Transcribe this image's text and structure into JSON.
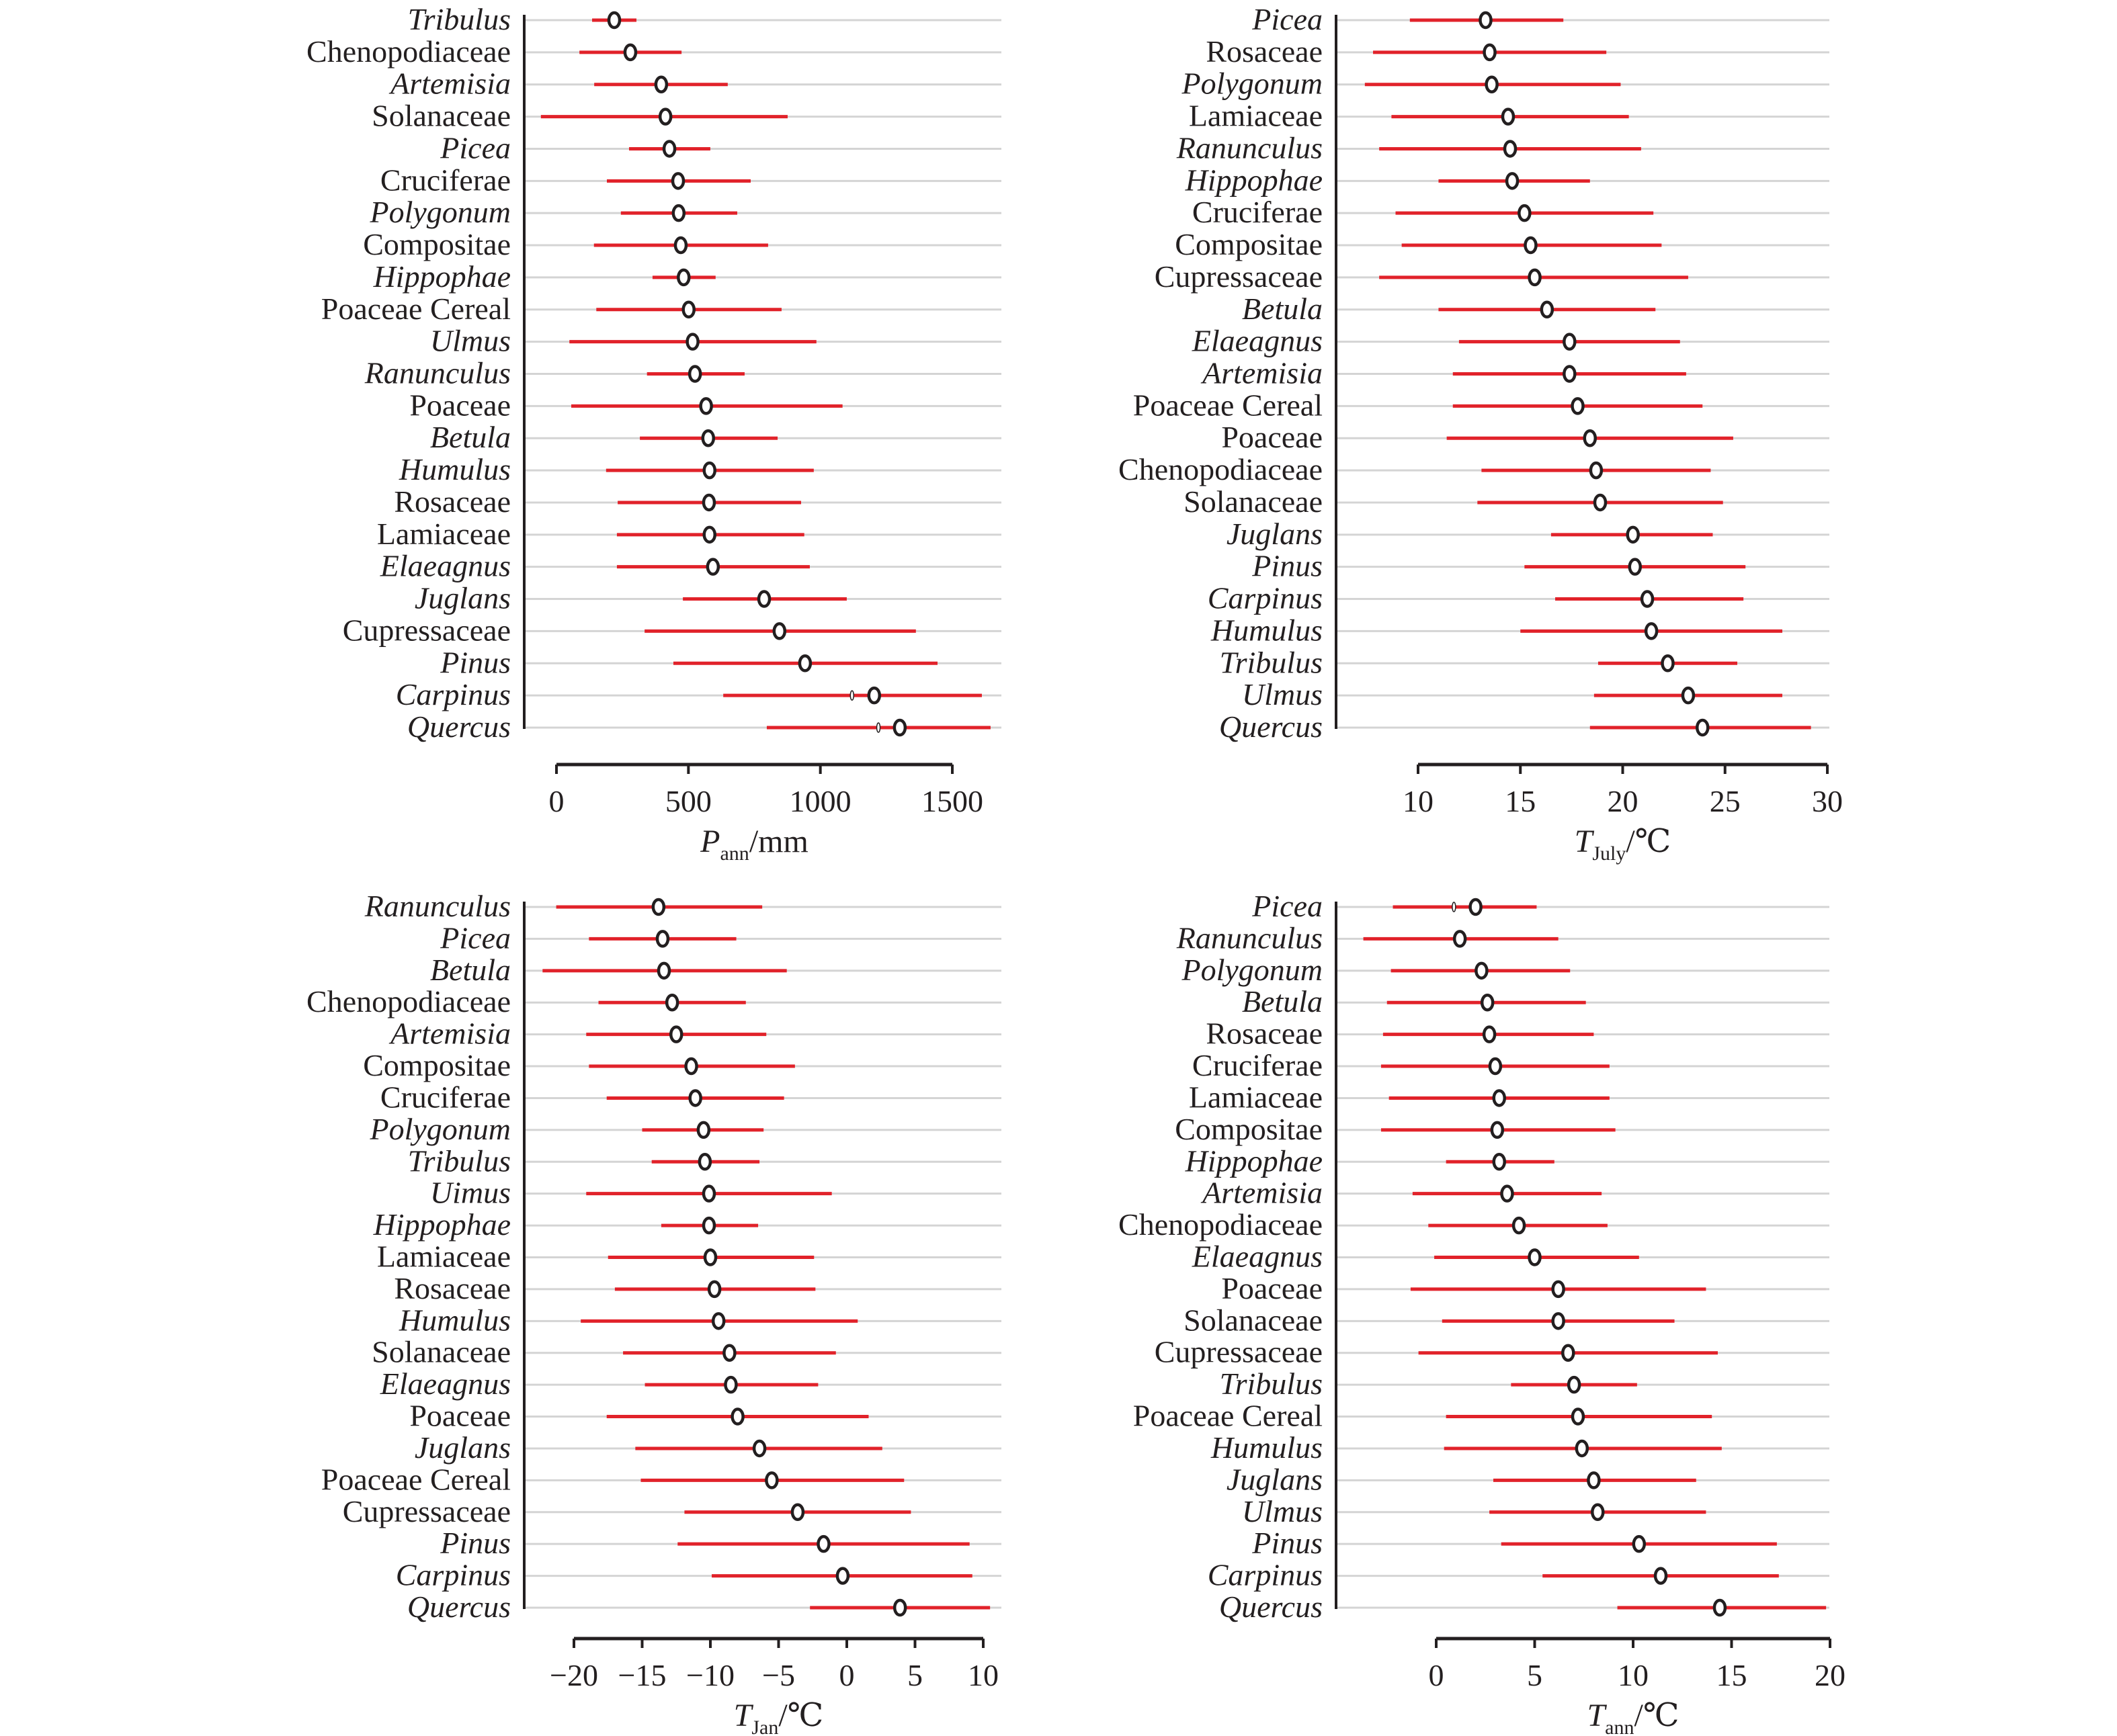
{
  "chart_data": [
    {
      "type": "scatter",
      "subtype": "range-plot",
      "title": "",
      "xlabel_main": "P",
      "xlabel_sub": "ann",
      "xlabel_unit": "/mm",
      "xlim": [
        -60,
        1660
      ],
      "xticks": [
        0,
        500,
        1000,
        1500
      ],
      "xtick_labels": [
        "0",
        "500",
        "1000",
        "1500"
      ],
      "grid": true,
      "series": [
        {
          "taxon": "Tribulus",
          "italic": true,
          "min": 135,
          "mean": 219,
          "max": 303
        },
        {
          "taxon": "Chenopodiaceae",
          "italic": false,
          "min": 87,
          "mean": 280,
          "max": 474
        },
        {
          "taxon": "Artemisia",
          "italic": true,
          "min": 143,
          "mean": 397,
          "max": 649
        },
        {
          "taxon": "Solanaceae",
          "italic": false,
          "min": -59,
          "mean": 413,
          "max": 876
        },
        {
          "taxon": "Picea",
          "italic": true,
          "min": 275,
          "mean": 428,
          "max": 583
        },
        {
          "taxon": "Cruciferae",
          "italic": false,
          "min": 191,
          "mean": 461,
          "max": 736
        },
        {
          "taxon": "Polygonum",
          "italic": true,
          "min": 244,
          "mean": 463,
          "max": 685
        },
        {
          "taxon": "Compositae",
          "italic": false,
          "min": 142,
          "mean": 471,
          "max": 802
        },
        {
          "taxon": "Hippophae",
          "italic": true,
          "min": 364,
          "mean": 482,
          "max": 603
        },
        {
          "taxon": "Poaceae Cereal",
          "italic": false,
          "min": 151,
          "mean": 501,
          "max": 853
        },
        {
          "taxon": "Ulmus",
          "italic": true,
          "min": 49,
          "mean": 516,
          "max": 985
        },
        {
          "taxon": "Ranunculus",
          "italic": true,
          "min": 343,
          "mean": 525,
          "max": 713
        },
        {
          "taxon": "Poaceae",
          "italic": false,
          "min": 56,
          "mean": 567,
          "max": 1084
        },
        {
          "taxon": "Betula",
          "italic": true,
          "min": 316,
          "mean": 575,
          "max": 838
        },
        {
          "taxon": "Humulus",
          "italic": true,
          "min": 188,
          "mean": 580,
          "max": 975
        },
        {
          "taxon": "Rosaceae",
          "italic": false,
          "min": 232,
          "mean": 578,
          "max": 927
        },
        {
          "taxon": "Lamiaceae",
          "italic": false,
          "min": 229,
          "mean": 580,
          "max": 939
        },
        {
          "taxon": "Elaeagnus",
          "italic": true,
          "min": 229,
          "mean": 593,
          "max": 960
        },
        {
          "taxon": "Juglans",
          "italic": true,
          "min": 479,
          "mean": 787,
          "max": 1100
        },
        {
          "taxon": "Cupressaceae",
          "italic": false,
          "min": 334,
          "mean": 845,
          "max": 1362
        },
        {
          "taxon": "Pinus",
          "italic": true,
          "min": 443,
          "mean": 942,
          "max": 1444
        },
        {
          "taxon": "Carpinus",
          "italic": true,
          "min": 632,
          "mean": 1204,
          "max": 1612,
          "alt": 1120
        },
        {
          "taxon": "Quercus",
          "italic": true,
          "min": 797,
          "mean": 1301,
          "max": 1645,
          "alt": 1220
        }
      ]
    },
    {
      "type": "scatter",
      "subtype": "range-plot",
      "title": "",
      "xlabel_main": "T",
      "xlabel_sub": "July",
      "xlabel_unit": "/℃",
      "xlim": [
        6.5,
        30
      ],
      "xticks": [
        10,
        15,
        20,
        25,
        30
      ],
      "xtick_labels": [
        "10",
        "15",
        "20",
        "25",
        "30"
      ],
      "grid": true,
      "series": [
        {
          "taxon": "Picea",
          "italic": true,
          "min": 9.6,
          "mean": 13.3,
          "max": 17.1
        },
        {
          "taxon": "Rosaceae",
          "italic": false,
          "min": 7.8,
          "mean": 13.5,
          "max": 19.2
        },
        {
          "taxon": "Polygonum",
          "italic": true,
          "min": 7.4,
          "mean": 13.6,
          "max": 19.9
        },
        {
          "taxon": "Lamiaceae",
          "italic": false,
          "min": 8.7,
          "mean": 14.4,
          "max": 20.3
        },
        {
          "taxon": "Ranunculus",
          "italic": true,
          "min": 8.1,
          "mean": 14.5,
          "max": 20.9
        },
        {
          "taxon": "Hippophae",
          "italic": true,
          "min": 11.0,
          "mean": 14.6,
          "max": 18.4
        },
        {
          "taxon": "Cruciferae",
          "italic": false,
          "min": 8.9,
          "mean": 15.2,
          "max": 21.5
        },
        {
          "taxon": "Compositae",
          "italic": false,
          "min": 9.2,
          "mean": 15.5,
          "max": 21.9
        },
        {
          "taxon": "Cupressaceae",
          "italic": false,
          "min": 8.1,
          "mean": 15.7,
          "max": 23.2
        },
        {
          "taxon": "Betula",
          "italic": true,
          "min": 11.0,
          "mean": 16.3,
          "max": 21.6
        },
        {
          "taxon": "Elaeagnus",
          "italic": true,
          "min": 12.0,
          "mean": 17.4,
          "max": 22.8
        },
        {
          "taxon": "Artemisia",
          "italic": true,
          "min": 11.7,
          "mean": 17.4,
          "max": 23.1
        },
        {
          "taxon": "Poaceae Cereal",
          "italic": false,
          "min": 11.7,
          "mean": 17.8,
          "max": 23.9
        },
        {
          "taxon": "Poaceae",
          "italic": false,
          "min": 11.4,
          "mean": 18.4,
          "max": 25.4
        },
        {
          "taxon": "Chenopodiaceae",
          "italic": false,
          "min": 13.1,
          "mean": 18.7,
          "max": 24.3
        },
        {
          "taxon": "Solanaceae",
          "italic": false,
          "min": 12.9,
          "mean": 18.9,
          "max": 24.9
        },
        {
          "taxon": "Juglans",
          "italic": true,
          "min": 16.5,
          "mean": 20.5,
          "max": 24.4
        },
        {
          "taxon": "Pinus",
          "italic": true,
          "min": 15.2,
          "mean": 20.6,
          "max": 26.0
        },
        {
          "taxon": "Carpinus",
          "italic": true,
          "min": 16.7,
          "mean": 21.2,
          "max": 25.9
        },
        {
          "taxon": "Humulus",
          "italic": true,
          "min": 15.0,
          "mean": 21.4,
          "max": 27.8
        },
        {
          "taxon": "Tribulus",
          "italic": true,
          "min": 18.8,
          "mean": 22.2,
          "max": 25.6
        },
        {
          "taxon": "Ulmus",
          "italic": true,
          "min": 18.6,
          "mean": 23.2,
          "max": 27.8
        },
        {
          "taxon": "Quercus",
          "italic": true,
          "min": 18.4,
          "mean": 23.9,
          "max": 29.2
        }
      ]
    },
    {
      "type": "scatter",
      "subtype": "range-plot",
      "title": "",
      "xlabel_main": "T",
      "xlabel_sub": "Jan",
      "xlabel_unit": "/℃",
      "xlim": [
        -23.5,
        10.9
      ],
      "xticks": [
        -20,
        -15,
        -10,
        -5,
        0,
        5,
        10
      ],
      "xtick_labels": [
        "−20",
        "−15",
        "−10",
        "−5",
        "0",
        "5",
        "10"
      ],
      "grid": true,
      "series": [
        {
          "taxon": "Ranunculus",
          "italic": true,
          "min": -21.3,
          "mean": -13.8,
          "max": -6.2
        },
        {
          "taxon": "Picea",
          "italic": true,
          "min": -18.9,
          "mean": -13.5,
          "max": -8.1
        },
        {
          "taxon": "Betula",
          "italic": true,
          "min": -22.3,
          "mean": -13.4,
          "max": -4.4
        },
        {
          "taxon": "Chenopodiaceae",
          "italic": false,
          "min": -18.2,
          "mean": -12.8,
          "max": -7.4
        },
        {
          "taxon": "Artemisia",
          "italic": true,
          "min": -19.1,
          "mean": -12.5,
          "max": -5.9
        },
        {
          "taxon": "Compositae",
          "italic": false,
          "min": -18.9,
          "mean": -11.4,
          "max": -3.8
        },
        {
          "taxon": "Cruciferae",
          "italic": false,
          "min": -17.6,
          "mean": -11.1,
          "max": -4.6
        },
        {
          "taxon": "Polygonum",
          "italic": true,
          "min": -15.0,
          "mean": -10.5,
          "max": -6.1
        },
        {
          "taxon": "Tribulus",
          "italic": true,
          "min": -14.3,
          "mean": -10.4,
          "max": -6.4
        },
        {
          "taxon": "Uimus",
          "italic": true,
          "min": -19.1,
          "mean": -10.1,
          "max": -1.1
        },
        {
          "taxon": "Hippophae",
          "italic": true,
          "min": -13.6,
          "mean": -10.1,
          "max": -6.5
        },
        {
          "taxon": "Lamiaceae",
          "italic": false,
          "min": -17.5,
          "mean": -10.0,
          "max": -2.4
        },
        {
          "taxon": "Rosaceae",
          "italic": false,
          "min": -17.0,
          "mean": -9.7,
          "max": -2.3
        },
        {
          "taxon": "Humulus",
          "italic": true,
          "min": -19.5,
          "mean": -9.4,
          "max": 0.8
        },
        {
          "taxon": "Solanaceae",
          "italic": false,
          "min": -16.4,
          "mean": -8.6,
          "max": -0.8
        },
        {
          "taxon": "Elaeagnus",
          "italic": true,
          "min": -14.8,
          "mean": -8.5,
          "max": -2.1
        },
        {
          "taxon": "Poaceae",
          "italic": false,
          "min": -17.6,
          "mean": -8.0,
          "max": 1.6
        },
        {
          "taxon": "Juglans",
          "italic": true,
          "min": -15.5,
          "mean": -6.4,
          "max": 2.6
        },
        {
          "taxon": "Poaceae Cereal",
          "italic": false,
          "min": -15.1,
          "mean": -5.5,
          "max": 4.2
        },
        {
          "taxon": "Cupressaceae",
          "italic": false,
          "min": -11.9,
          "mean": -3.6,
          "max": 4.7
        },
        {
          "taxon": "Pinus",
          "italic": true,
          "min": -12.4,
          "mean": -1.7,
          "max": 9.0
        },
        {
          "taxon": "Carpinus",
          "italic": true,
          "min": -9.9,
          "mean": -0.3,
          "max": 9.2
        },
        {
          "taxon": "Quercus",
          "italic": true,
          "min": -2.7,
          "mean": 3.9,
          "max": 10.5
        }
      ]
    },
    {
      "type": "scatter",
      "subtype": "range-plot",
      "title": "",
      "xlabel_main": "T",
      "xlabel_sub": "ann",
      "xlabel_unit": "/℃",
      "xlim": [
        -4.6,
        20.8
      ],
      "xticks": [
        0,
        5,
        10,
        15,
        20
      ],
      "xtick_labels": [
        "0",
        "5",
        "10",
        "15",
        "20"
      ],
      "grid": true,
      "series": [
        {
          "taxon": "Picea",
          "italic": true,
          "min": -2.2,
          "mean": 2.0,
          "max": 5.1,
          "alt": 0.9
        },
        {
          "taxon": "Ranunculus",
          "italic": true,
          "min": -3.7,
          "mean": 1.2,
          "max": 6.2
        },
        {
          "taxon": "Polygonum",
          "italic": true,
          "min": -2.3,
          "mean": 2.3,
          "max": 6.8
        },
        {
          "taxon": "Betula",
          "italic": true,
          "min": -2.5,
          "mean": 2.6,
          "max": 7.6
        },
        {
          "taxon": "Rosaceae",
          "italic": false,
          "min": -2.7,
          "mean": 2.7,
          "max": 8.0
        },
        {
          "taxon": "Cruciferae",
          "italic": false,
          "min": -2.8,
          "mean": 3.0,
          "max": 8.8
        },
        {
          "taxon": "Lamiaceae",
          "italic": false,
          "min": -2.4,
          "mean": 3.2,
          "max": 8.8
        },
        {
          "taxon": "Compositae",
          "italic": false,
          "min": -2.8,
          "mean": 3.1,
          "max": 9.1
        },
        {
          "taxon": "Hippophae",
          "italic": true,
          "min": 0.5,
          "mean": 3.2,
          "max": 6.0
        },
        {
          "taxon": "Artemisia",
          "italic": true,
          "min": -1.2,
          "mean": 3.6,
          "max": 8.4
        },
        {
          "taxon": "Chenopodiaceae",
          "italic": false,
          "min": -0.4,
          "mean": 4.2,
          "max": 8.7
        },
        {
          "taxon": "Elaeagnus",
          "italic": true,
          "min": -0.1,
          "mean": 5.0,
          "max": 10.3
        },
        {
          "taxon": "Poaceae",
          "italic": false,
          "min": -1.3,
          "mean": 6.2,
          "max": 13.7
        },
        {
          "taxon": "Solanaceae",
          "italic": false,
          "min": 0.3,
          "mean": 6.2,
          "max": 12.1
        },
        {
          "taxon": "Cupressaceae",
          "italic": false,
          "min": -0.9,
          "mean": 6.7,
          "max": 14.3
        },
        {
          "taxon": "Tribulus",
          "italic": true,
          "min": 3.8,
          "mean": 7.0,
          "max": 10.2
        },
        {
          "taxon": "Poaceae Cereal",
          "italic": false,
          "min": 0.5,
          "mean": 7.2,
          "max": 14.0
        },
        {
          "taxon": "Humulus",
          "italic": true,
          "min": 0.4,
          "mean": 7.4,
          "max": 14.5
        },
        {
          "taxon": "Juglans",
          "italic": true,
          "min": 2.9,
          "mean": 8.0,
          "max": 13.2
        },
        {
          "taxon": "Ulmus",
          "italic": true,
          "min": 2.7,
          "mean": 8.2,
          "max": 13.7
        },
        {
          "taxon": "Pinus",
          "italic": true,
          "min": 3.3,
          "mean": 10.3,
          "max": 17.3
        },
        {
          "taxon": "Carpinus",
          "italic": true,
          "min": 5.4,
          "mean": 11.4,
          "max": 17.4
        },
        {
          "taxon": "Quercus",
          "italic": true,
          "min": 9.2,
          "mean": 14.4,
          "max": 19.8
        }
      ]
    }
  ],
  "colors": {
    "range_line": "#e1222a",
    "gridline": "#d4d4d4",
    "axis": "#231f20",
    "marker_fill": "#ffffff"
  }
}
